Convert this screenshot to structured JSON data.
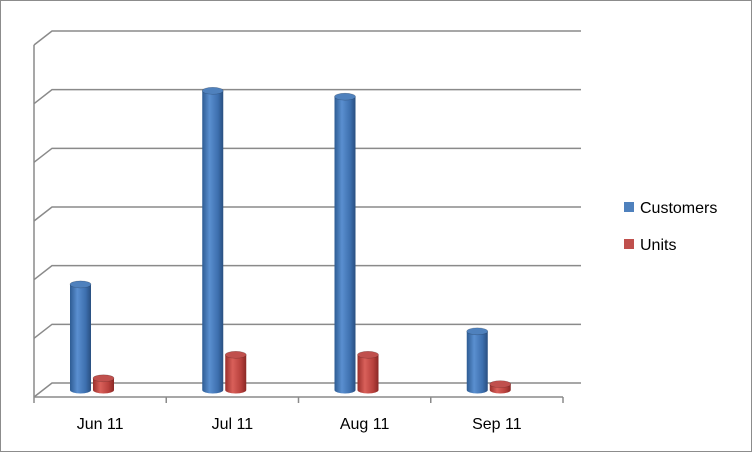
{
  "chart_data": {
    "type": "bar",
    "categories": [
      "Jun 11",
      "Jul 11",
      "Aug 11",
      "Sep 11"
    ],
    "series": [
      {
        "name": "Customers",
        "values": [
          1.8,
          5.1,
          5.0,
          1.0
        ]
      },
      {
        "name": "Units",
        "values": [
          0.2,
          0.6,
          0.6,
          0.1
        ]
      }
    ],
    "ylim": [
      0,
      6
    ],
    "grid": true,
    "legend": "right",
    "title": "",
    "xlabel": "",
    "ylabel": "",
    "colors": {
      "Customers": "#4f81bd",
      "Units": "#c0504d"
    }
  }
}
